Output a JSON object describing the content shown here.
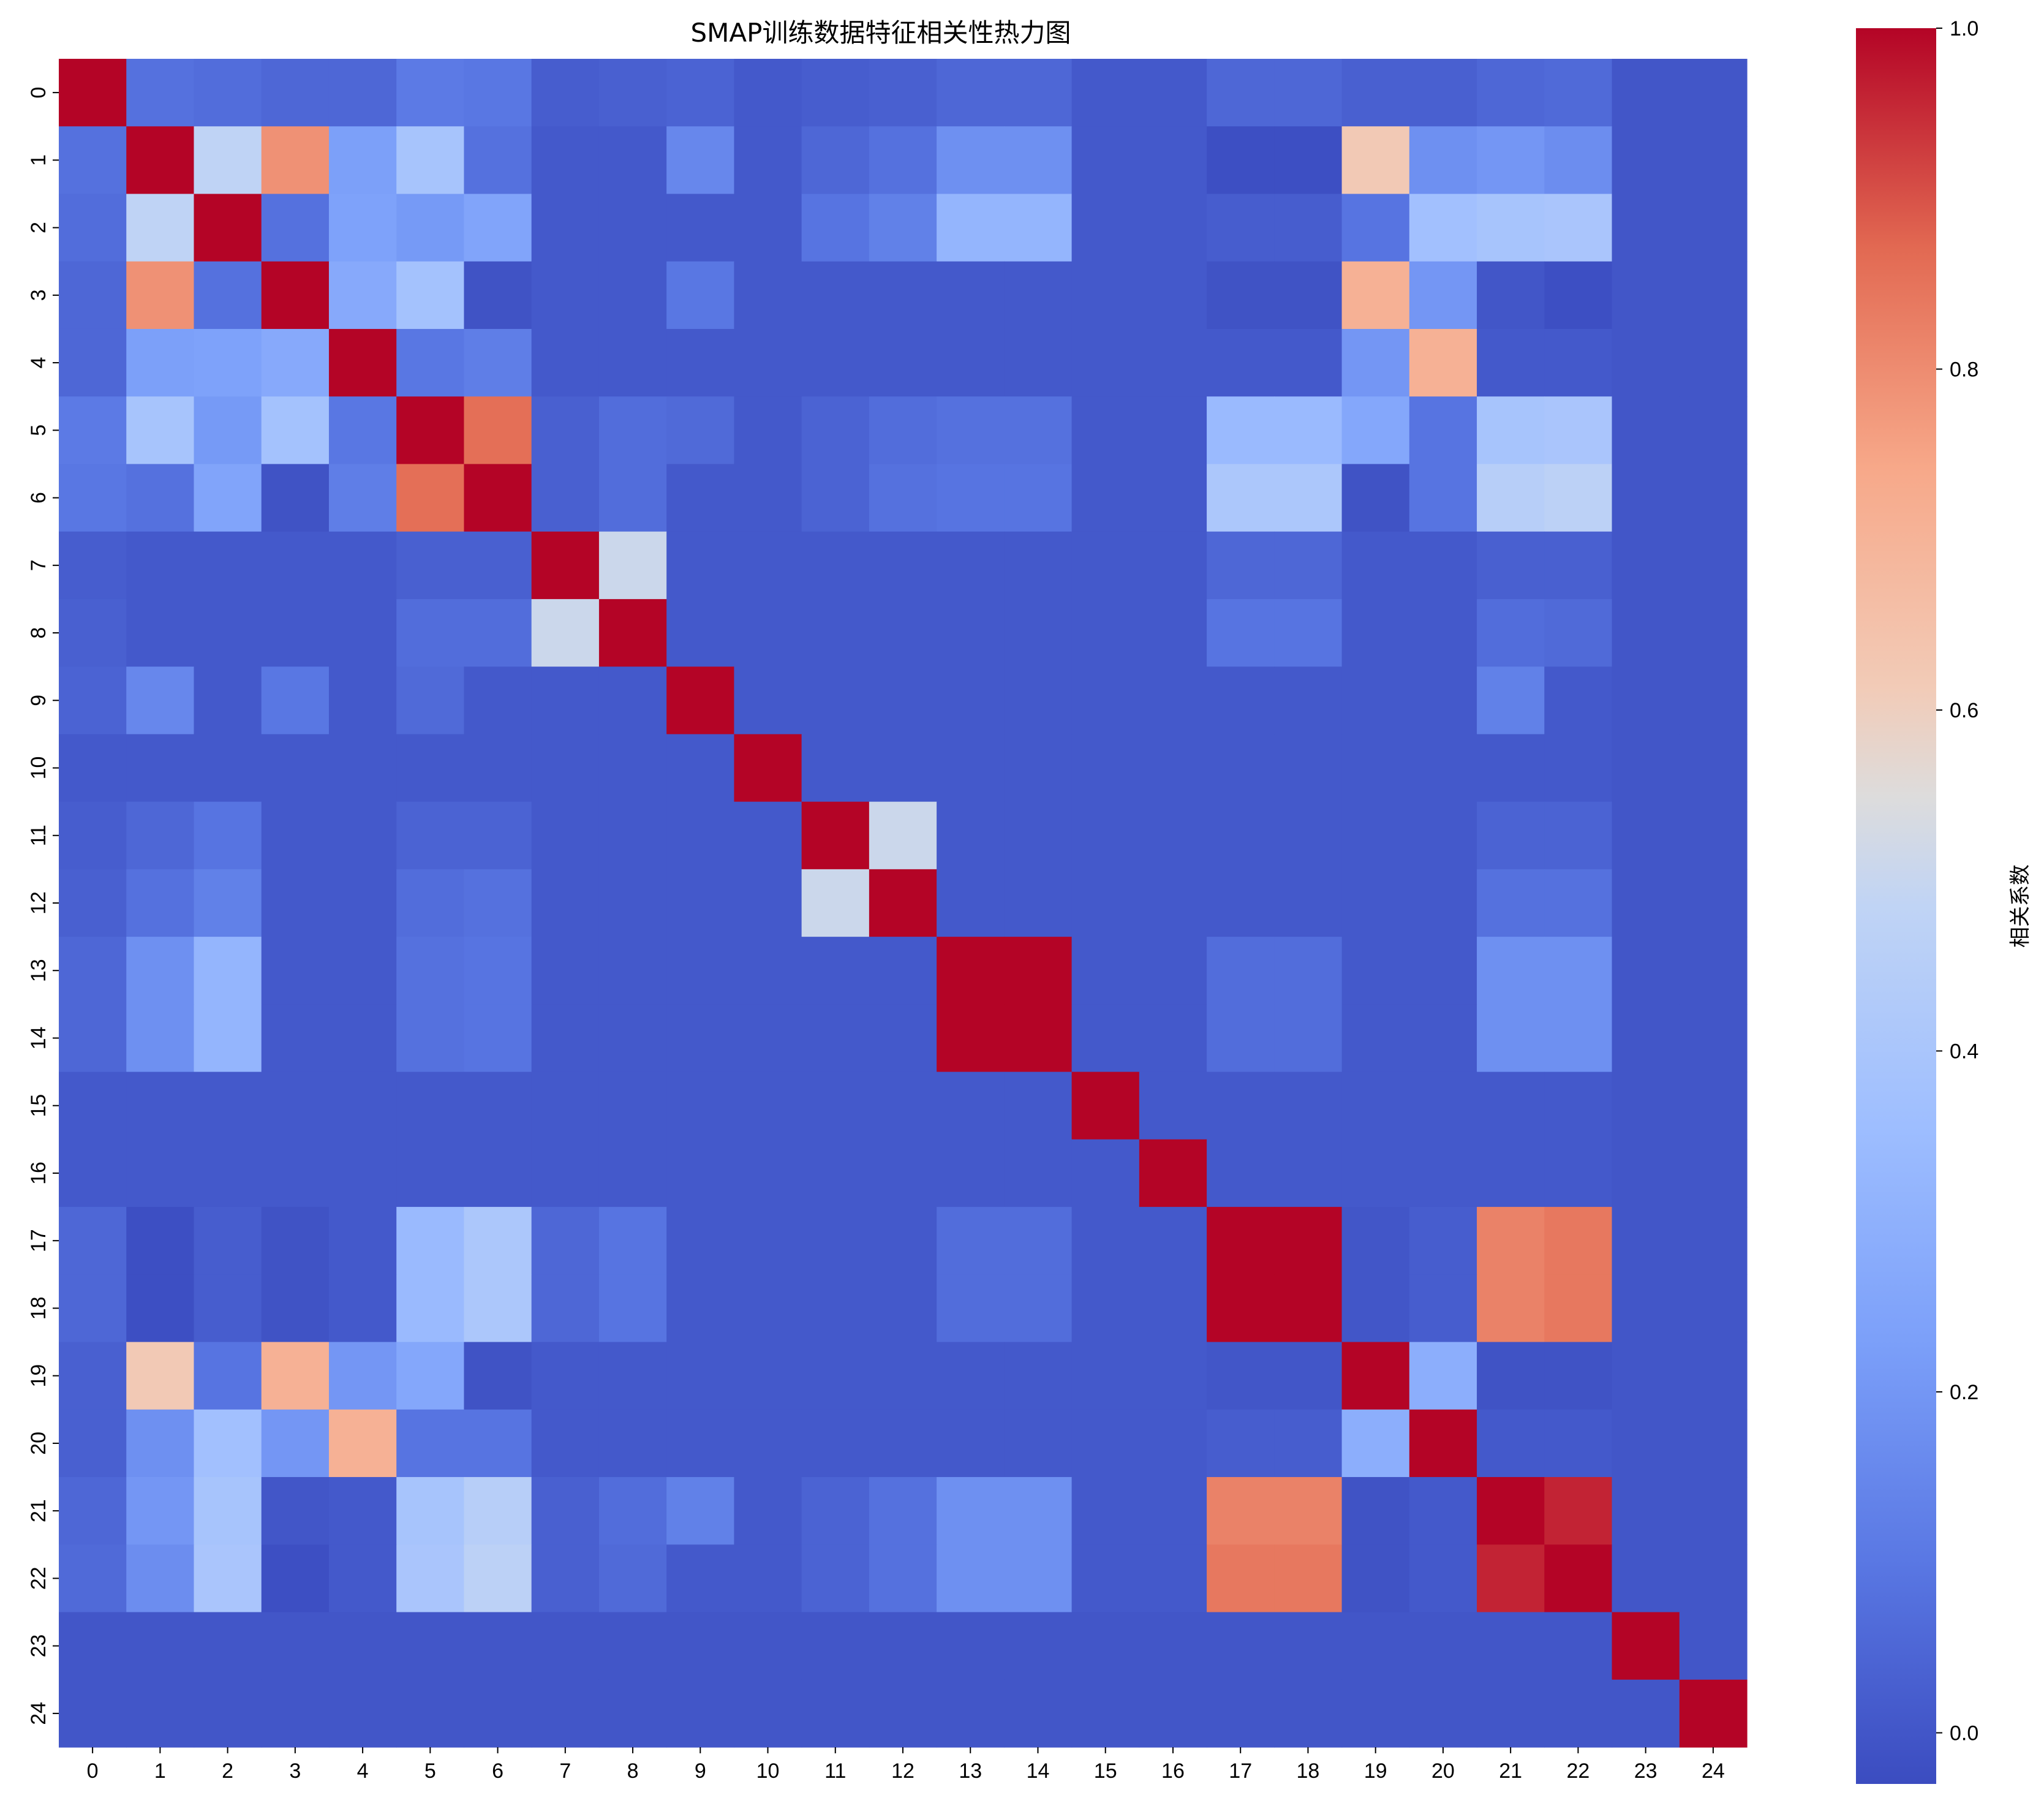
{
  "chart_data": {
    "type": "heatmap",
    "title": "SMAP训练数据特征相关性热力图",
    "x_labels": [
      "0",
      "1",
      "2",
      "3",
      "4",
      "5",
      "6",
      "7",
      "8",
      "9",
      "10",
      "11",
      "12",
      "13",
      "14",
      "15",
      "16",
      "17",
      "18",
      "19",
      "20",
      "21",
      "22",
      "23",
      "24"
    ],
    "y_labels": [
      "0",
      "1",
      "2",
      "3",
      "4",
      "5",
      "6",
      "7",
      "8",
      "9",
      "10",
      "11",
      "12",
      "13",
      "14",
      "15",
      "16",
      "17",
      "18",
      "19",
      "20",
      "21",
      "22",
      "23",
      "24"
    ],
    "colormap": "coolwarm",
    "vmin": -0.03,
    "vmax": 1.0,
    "colorbar": {
      "label": "相关系数",
      "ticks": [
        0.0,
        0.2,
        0.4,
        0.6,
        0.8,
        1.0
      ],
      "tick_labels": [
        "0.0",
        "0.2",
        "0.4",
        "0.6",
        "0.8",
        "1.0"
      ]
    },
    "matrix": [
      [
        1.0,
        0.08,
        0.07,
        0.05,
        0.05,
        0.11,
        0.1,
        0.02,
        0.03,
        0.04,
        0.01,
        0.02,
        0.03,
        0.05,
        0.05,
        0.01,
        0.01,
        0.05,
        0.05,
        0.03,
        0.03,
        0.05,
        0.06,
        0.0,
        0.0
      ],
      [
        0.08,
        1.0,
        0.48,
        0.79,
        0.23,
        0.39,
        0.08,
        0.01,
        0.01,
        0.15,
        0.01,
        0.05,
        0.08,
        0.18,
        0.18,
        0.01,
        0.01,
        -0.02,
        -0.02,
        0.62,
        0.18,
        0.2,
        0.17,
        0.0,
        0.0
      ],
      [
        0.07,
        0.48,
        1.0,
        0.08,
        0.24,
        0.21,
        0.25,
        0.01,
        0.01,
        0.01,
        0.01,
        0.09,
        0.13,
        0.32,
        0.32,
        0.01,
        0.01,
        0.02,
        0.02,
        0.09,
        0.37,
        0.39,
        0.4,
        0.0,
        0.0
      ],
      [
        0.05,
        0.79,
        0.08,
        1.0,
        0.27,
        0.38,
        -0.01,
        0.01,
        0.01,
        0.1,
        0.01,
        0.01,
        0.01,
        0.01,
        0.01,
        0.01,
        0.01,
        -0.01,
        -0.01,
        0.71,
        0.2,
        0.0,
        -0.02,
        0.0,
        0.0
      ],
      [
        0.05,
        0.23,
        0.24,
        0.27,
        1.0,
        0.1,
        0.12,
        0.01,
        0.01,
        0.01,
        0.01,
        0.01,
        0.01,
        0.01,
        0.01,
        0.01,
        0.01,
        0.01,
        0.01,
        0.2,
        0.71,
        0.01,
        0.01,
        0.0,
        0.0
      ],
      [
        0.11,
        0.39,
        0.21,
        0.38,
        0.1,
        1.0,
        0.86,
        0.03,
        0.07,
        0.06,
        0.01,
        0.04,
        0.07,
        0.08,
        0.08,
        0.01,
        0.01,
        0.34,
        0.34,
        0.26,
        0.09,
        0.39,
        0.4,
        0.0,
        0.0
      ],
      [
        0.1,
        0.08,
        0.25,
        -0.01,
        0.12,
        0.86,
        1.0,
        0.03,
        0.07,
        0.01,
        0.01,
        0.04,
        0.08,
        0.09,
        0.09,
        0.01,
        0.01,
        0.41,
        0.41,
        -0.01,
        0.09,
        0.45,
        0.47,
        0.0,
        0.0
      ],
      [
        0.02,
        0.01,
        0.01,
        0.01,
        0.01,
        0.03,
        0.03,
        1.0,
        0.51,
        0.01,
        0.01,
        0.01,
        0.01,
        0.01,
        0.01,
        0.01,
        0.01,
        0.05,
        0.05,
        0.01,
        0.01,
        0.03,
        0.03,
        0.0,
        0.0
      ],
      [
        0.03,
        0.01,
        0.01,
        0.01,
        0.01,
        0.07,
        0.07,
        0.51,
        1.0,
        0.01,
        0.01,
        0.01,
        0.01,
        0.01,
        0.01,
        0.01,
        0.01,
        0.09,
        0.09,
        0.01,
        0.01,
        0.07,
        0.06,
        0.0,
        0.0
      ],
      [
        0.04,
        0.15,
        0.01,
        0.1,
        0.01,
        0.06,
        0.01,
        0.01,
        0.01,
        1.0,
        0.01,
        0.01,
        0.01,
        0.01,
        0.01,
        0.01,
        0.01,
        0.01,
        0.01,
        0.01,
        0.01,
        0.13,
        0.01,
        0.0,
        0.0
      ],
      [
        0.01,
        0.01,
        0.01,
        0.01,
        0.01,
        0.01,
        0.01,
        0.01,
        0.01,
        0.01,
        1.0,
        0.01,
        0.01,
        0.01,
        0.01,
        0.01,
        0.01,
        0.01,
        0.01,
        0.01,
        0.01,
        0.01,
        0.01,
        0.0,
        0.0
      ],
      [
        0.02,
        0.05,
        0.09,
        0.01,
        0.01,
        0.04,
        0.04,
        0.01,
        0.01,
        0.01,
        0.01,
        1.0,
        0.51,
        0.01,
        0.01,
        0.01,
        0.01,
        0.01,
        0.01,
        0.01,
        0.01,
        0.04,
        0.04,
        0.0,
        0.0
      ],
      [
        0.03,
        0.08,
        0.13,
        0.01,
        0.01,
        0.07,
        0.08,
        0.01,
        0.01,
        0.01,
        0.01,
        0.51,
        1.0,
        0.01,
        0.01,
        0.01,
        0.01,
        0.01,
        0.01,
        0.01,
        0.01,
        0.08,
        0.08,
        0.0,
        0.0
      ],
      [
        0.05,
        0.18,
        0.32,
        0.01,
        0.01,
        0.08,
        0.09,
        0.01,
        0.01,
        0.01,
        0.01,
        0.01,
        0.01,
        1.0,
        1.0,
        0.01,
        0.01,
        0.07,
        0.07,
        0.01,
        0.01,
        0.18,
        0.18,
        0.0,
        0.0
      ],
      [
        0.05,
        0.18,
        0.32,
        0.01,
        0.01,
        0.08,
        0.09,
        0.01,
        0.01,
        0.01,
        0.01,
        0.01,
        0.01,
        1.0,
        1.0,
        0.01,
        0.01,
        0.07,
        0.07,
        0.01,
        0.01,
        0.18,
        0.18,
        0.0,
        0.0
      ],
      [
        0.01,
        0.01,
        0.01,
        0.01,
        0.01,
        0.01,
        0.01,
        0.01,
        0.01,
        0.01,
        0.01,
        0.01,
        0.01,
        0.01,
        0.01,
        1.0,
        0.01,
        0.01,
        0.01,
        0.01,
        0.01,
        0.01,
        0.01,
        0.0,
        0.0
      ],
      [
        0.01,
        0.01,
        0.01,
        0.01,
        0.01,
        0.01,
        0.01,
        0.01,
        0.01,
        0.01,
        0.01,
        0.01,
        0.01,
        0.01,
        0.01,
        0.01,
        1.0,
        0.01,
        0.01,
        0.01,
        0.01,
        0.01,
        0.01,
        0.0,
        0.0
      ],
      [
        0.05,
        -0.02,
        0.02,
        -0.01,
        0.01,
        0.34,
        0.41,
        0.05,
        0.09,
        0.01,
        0.01,
        0.01,
        0.01,
        0.07,
        0.07,
        0.01,
        0.01,
        1.0,
        1.0,
        0.0,
        0.02,
        0.82,
        0.84,
        0.0,
        0.0
      ],
      [
        0.05,
        -0.02,
        0.02,
        -0.01,
        0.01,
        0.34,
        0.41,
        0.05,
        0.09,
        0.01,
        0.01,
        0.01,
        0.01,
        0.07,
        0.07,
        0.01,
        0.01,
        1.0,
        1.0,
        0.0,
        0.02,
        0.82,
        0.84,
        0.0,
        0.0
      ],
      [
        0.03,
        0.62,
        0.09,
        0.71,
        0.2,
        0.26,
        -0.01,
        0.01,
        0.01,
        0.01,
        0.01,
        0.01,
        0.01,
        0.01,
        0.01,
        0.01,
        0.01,
        0.0,
        0.0,
        1.0,
        0.29,
        -0.01,
        -0.01,
        0.0,
        0.0
      ],
      [
        0.03,
        0.18,
        0.37,
        0.2,
        0.71,
        0.09,
        0.09,
        0.01,
        0.01,
        0.01,
        0.01,
        0.01,
        0.01,
        0.01,
        0.01,
        0.01,
        0.01,
        0.02,
        0.02,
        0.29,
        1.0,
        0.01,
        0.01,
        0.0,
        0.0
      ],
      [
        0.05,
        0.2,
        0.39,
        0.0,
        0.01,
        0.39,
        0.45,
        0.03,
        0.07,
        0.13,
        0.01,
        0.04,
        0.08,
        0.18,
        0.18,
        0.01,
        0.01,
        0.82,
        0.82,
        -0.01,
        0.01,
        1.0,
        0.96,
        0.0,
        0.0
      ],
      [
        0.06,
        0.17,
        0.4,
        -0.02,
        0.01,
        0.4,
        0.47,
        0.03,
        0.06,
        0.01,
        0.01,
        0.04,
        0.08,
        0.18,
        0.18,
        0.01,
        0.01,
        0.84,
        0.84,
        -0.01,
        0.01,
        0.96,
        1.0,
        0.0,
        0.0
      ],
      [
        0.0,
        0.0,
        0.0,
        0.0,
        0.0,
        0.0,
        0.0,
        0.0,
        0.0,
        0.0,
        0.0,
        0.0,
        0.0,
        0.0,
        0.0,
        0.0,
        0.0,
        0.0,
        0.0,
        0.0,
        0.0,
        0.0,
        0.0,
        1.0,
        0.0
      ],
      [
        0.0,
        0.0,
        0.0,
        0.0,
        0.0,
        0.0,
        0.0,
        0.0,
        0.0,
        0.0,
        0.0,
        0.0,
        0.0,
        0.0,
        0.0,
        0.0,
        0.0,
        0.0,
        0.0,
        0.0,
        0.0,
        0.0,
        0.0,
        0.0,
        1.0
      ]
    ]
  }
}
